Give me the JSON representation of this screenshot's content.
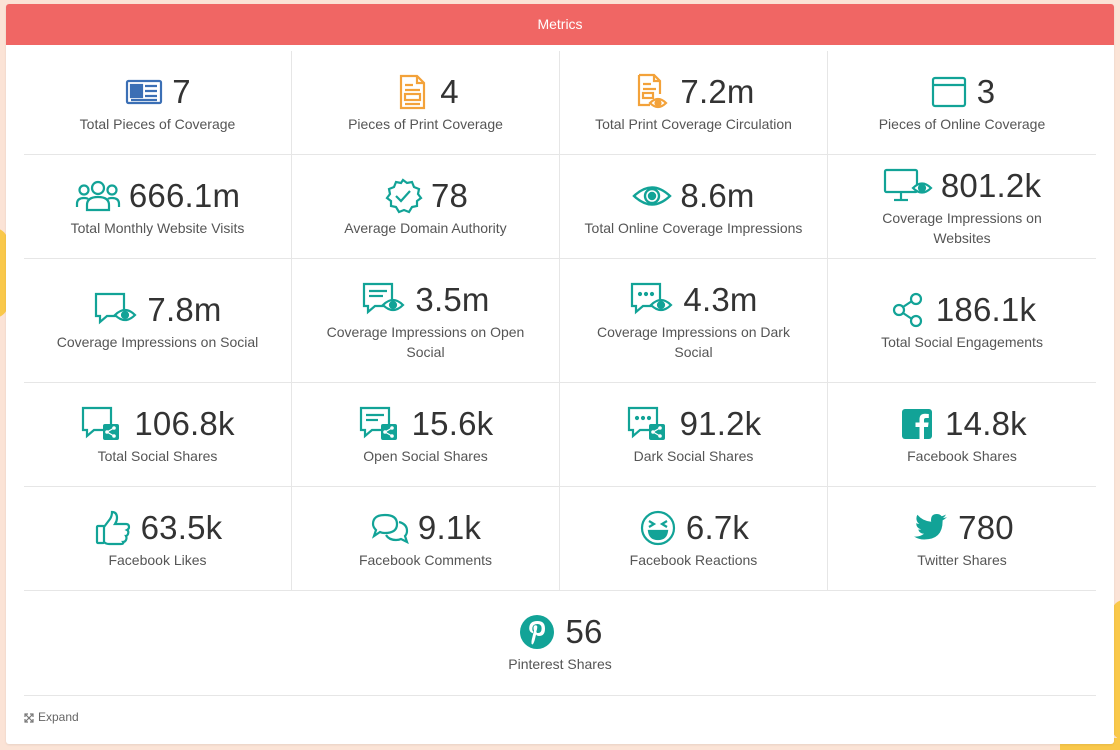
{
  "header": {
    "title": "Metrics"
  },
  "metrics": [
    {
      "value": "7",
      "label": "Total Pieces of Coverage",
      "icon": "newspaper-icon"
    },
    {
      "value": "4",
      "label": "Pieces of Print Coverage",
      "icon": "print-document-icon"
    },
    {
      "value": "7.2m",
      "label": "Total Print Coverage Circulation",
      "icon": "print-circulation-icon"
    },
    {
      "value": "3",
      "label": "Pieces of Online Coverage",
      "icon": "browser-window-icon"
    },
    {
      "value": "666.1m",
      "label": "Total Monthly Website Visits",
      "icon": "users-icon"
    },
    {
      "value": "78",
      "label": "Average Domain Authority",
      "icon": "verified-badge-icon"
    },
    {
      "value": "8.6m",
      "label": "Total Online Coverage Impressions",
      "icon": "eye-icon"
    },
    {
      "value": "801.2k",
      "label": "Coverage Impressions on Websites",
      "icon": "monitor-eye-icon"
    },
    {
      "value": "7.8m",
      "label": "Coverage Impressions on Social",
      "icon": "chat-eye-icon"
    },
    {
      "value": "3.5m",
      "label": "Coverage Impressions on Open Social",
      "icon": "chat-lines-eye-icon"
    },
    {
      "value": "4.3m",
      "label": "Coverage Impressions on Dark Social",
      "icon": "chat-dots-eye-icon"
    },
    {
      "value": "186.1k",
      "label": "Total Social Engagements",
      "icon": "share-icon"
    },
    {
      "value": "106.8k",
      "label": "Total Social Shares",
      "icon": "chat-share-icon"
    },
    {
      "value": "15.6k",
      "label": "Open Social Shares",
      "icon": "chat-lines-share-icon"
    },
    {
      "value": "91.2k",
      "label": "Dark Social Shares",
      "icon": "chat-dots-share-icon"
    },
    {
      "value": "14.8k",
      "label": "Facebook Shares",
      "icon": "facebook-icon"
    },
    {
      "value": "63.5k",
      "label": "Facebook Likes",
      "icon": "thumbs-up-icon"
    },
    {
      "value": "9.1k",
      "label": "Facebook Comments",
      "icon": "comments-icon"
    },
    {
      "value": "6.7k",
      "label": "Facebook Reactions",
      "icon": "laughing-face-icon"
    },
    {
      "value": "780",
      "label": "Twitter Shares",
      "icon": "twitter-icon"
    }
  ],
  "pinterest": {
    "value": "56",
    "label": "Pinterest Shares",
    "icon": "pinterest-icon"
  },
  "footer": {
    "expand_label": "Expand"
  },
  "colors": {
    "header": "#f06664",
    "blue": "#3b6fb5",
    "orange": "#f3a23a",
    "teal": "#12a397"
  }
}
